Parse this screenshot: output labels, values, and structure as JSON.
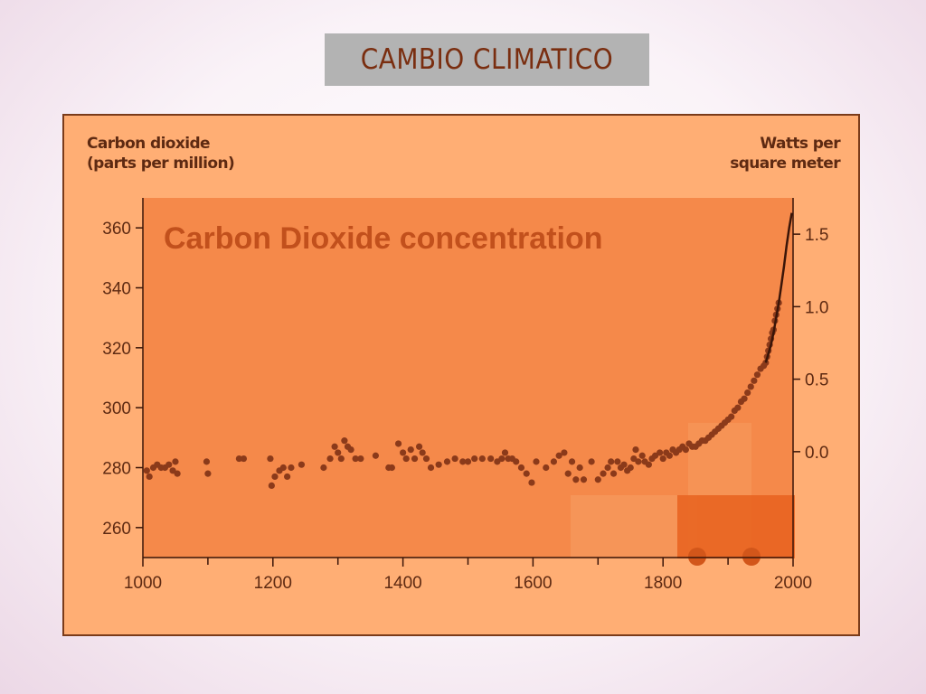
{
  "slide": {
    "title": "CAMBIO CLIMATICO"
  },
  "chart_data": {
    "type": "scatter",
    "title": "Carbon Dioxide concentration",
    "ylabel_lines": [
      "Carbon dioxide",
      "(parts per million)"
    ],
    "y2label_lines": [
      "Watts per",
      "square meter"
    ],
    "xlabel": "",
    "xlim": [
      1000,
      2000
    ],
    "ylim": [
      250,
      370
    ],
    "y2lim": [
      -0.73,
      1.75
    ],
    "x_ticks": [
      1000,
      1200,
      1400,
      1600,
      1800,
      2000
    ],
    "x_minor_ticks": [
      1100,
      1300,
      1500,
      1700,
      1900
    ],
    "y_ticks": [
      260,
      280,
      300,
      320,
      340,
      360
    ],
    "y2_ticks": [
      "0.0",
      "0.5",
      "1.0",
      "1.5"
    ],
    "y2_tick_values": [
      0.0,
      0.5,
      1.0,
      1.5
    ],
    "grid": false,
    "colors": {
      "panel": "#ffae74",
      "plot": "#f5894a",
      "points": "#8b3a1a",
      "line": "#3a1508",
      "text": "#5e2a12",
      "title": "#c2501c"
    },
    "series": [
      {
        "points": [
          [
            1006,
            279
          ],
          [
            1010,
            277
          ],
          [
            1016,
            280
          ],
          [
            1022,
            281
          ],
          [
            1028,
            280
          ],
          [
            1034,
            280
          ],
          [
            1040,
            281
          ],
          [
            1046,
            279
          ],
          [
            1050,
            282
          ],
          [
            1053,
            278
          ],
          [
            1098,
            282
          ],
          [
            1100,
            278
          ],
          [
            1148,
            283
          ],
          [
            1155,
            283
          ],
          [
            1196,
            283
          ],
          [
            1198,
            274
          ],
          [
            1203,
            277
          ],
          [
            1210,
            279
          ],
          [
            1216,
            280
          ],
          [
            1222,
            277
          ],
          [
            1228,
            280
          ],
          [
            1244,
            281
          ],
          [
            1278,
            280
          ],
          [
            1288,
            283
          ],
          [
            1295,
            287
          ],
          [
            1300,
            285
          ],
          [
            1305,
            283
          ],
          [
            1310,
            289
          ],
          [
            1315,
            287
          ],
          [
            1320,
            286
          ],
          [
            1327,
            283
          ],
          [
            1335,
            283
          ],
          [
            1358,
            284
          ],
          [
            1378,
            280
          ],
          [
            1383,
            280
          ],
          [
            1393,
            288
          ],
          [
            1400,
            285
          ],
          [
            1405,
            283
          ],
          [
            1412,
            286
          ],
          [
            1418,
            283
          ],
          [
            1425,
            287
          ],
          [
            1430,
            285
          ],
          [
            1436,
            283
          ],
          [
            1443,
            280
          ],
          [
            1455,
            281
          ],
          [
            1468,
            282
          ],
          [
            1480,
            283
          ],
          [
            1492,
            282
          ],
          [
            1500,
            282
          ],
          [
            1510,
            283
          ],
          [
            1522,
            283
          ],
          [
            1535,
            283
          ],
          [
            1545,
            282
          ],
          [
            1552,
            283
          ],
          [
            1557,
            285
          ],
          [
            1562,
            283
          ],
          [
            1568,
            283
          ],
          [
            1574,
            282
          ],
          [
            1582,
            280
          ],
          [
            1590,
            278
          ],
          [
            1598,
            275
          ],
          [
            1605,
            282
          ],
          [
            1620,
            280
          ],
          [
            1632,
            282
          ],
          [
            1640,
            284
          ],
          [
            1648,
            285
          ],
          [
            1654,
            278
          ],
          [
            1660,
            282
          ],
          [
            1666,
            276
          ],
          [
            1672,
            280
          ],
          [
            1678,
            276
          ],
          [
            1690,
            282
          ],
          [
            1700,
            276
          ],
          [
            1708,
            278
          ],
          [
            1715,
            280
          ],
          [
            1720,
            282
          ],
          [
            1724,
            278
          ],
          [
            1730,
            282
          ],
          [
            1735,
            280
          ],
          [
            1740,
            281
          ],
          [
            1745,
            279
          ],
          [
            1750,
            280
          ],
          [
            1755,
            283
          ],
          [
            1758,
            286
          ],
          [
            1762,
            282
          ],
          [
            1768,
            284
          ],
          [
            1772,
            282
          ],
          [
            1778,
            281
          ],
          [
            1783,
            283
          ],
          [
            1788,
            284
          ],
          [
            1795,
            285
          ],
          [
            1800,
            283
          ],
          [
            1805,
            285
          ],
          [
            1810,
            284
          ],
          [
            1815,
            286
          ],
          [
            1820,
            285
          ],
          [
            1825,
            286
          ],
          [
            1830,
            287
          ],
          [
            1835,
            286
          ],
          [
            1840,
            288
          ],
          [
            1845,
            287
          ],
          [
            1850,
            287
          ],
          [
            1855,
            288
          ],
          [
            1860,
            289
          ],
          [
            1865,
            289
          ],
          [
            1870,
            290
          ],
          [
            1875,
            291
          ],
          [
            1880,
            292
          ],
          [
            1885,
            293
          ],
          [
            1890,
            294
          ],
          [
            1895,
            295
          ],
          [
            1900,
            296
          ],
          [
            1905,
            297
          ],
          [
            1910,
            299
          ],
          [
            1915,
            300
          ],
          [
            1920,
            302
          ],
          [
            1925,
            303
          ],
          [
            1930,
            305
          ],
          [
            1935,
            307
          ],
          [
            1940,
            309
          ],
          [
            1945,
            311
          ],
          [
            1950,
            313
          ],
          [
            1955,
            314
          ],
          [
            1958,
            315
          ],
          [
            1960,
            317
          ],
          [
            1962,
            319
          ],
          [
            1964,
            321
          ],
          [
            1966,
            323
          ],
          [
            1968,
            325
          ],
          [
            1970,
            326
          ],
          [
            1972,
            329
          ],
          [
            1974,
            331
          ],
          [
            1976,
            333
          ],
          [
            1978,
            335
          ]
        ]
      },
      {
        "line": [
          [
            1958,
            315
          ],
          [
            1962,
            318
          ],
          [
            1966,
            321
          ],
          [
            1970,
            325
          ],
          [
            1974,
            330
          ],
          [
            1978,
            335
          ],
          [
            1982,
            341
          ],
          [
            1986,
            347
          ],
          [
            1990,
            354
          ],
          [
            1994,
            360
          ],
          [
            1998,
            365
          ]
        ]
      }
    ]
  }
}
